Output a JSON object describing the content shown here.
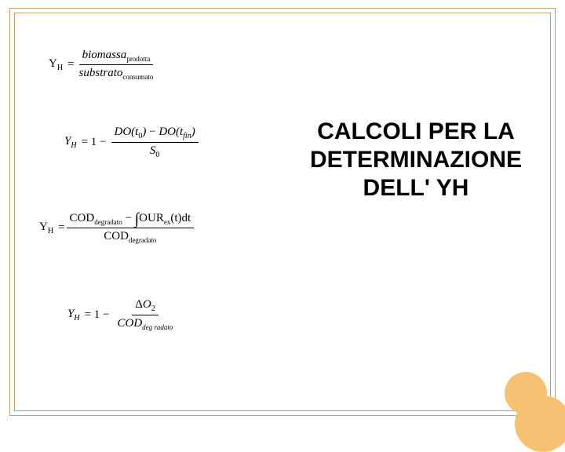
{
  "title": "CALCOLI PER LA DETERMINAZIONE DELL' YH",
  "colors": {
    "frame_border": "#c0a070",
    "circle_fill": "#f7c173",
    "text": "#000000",
    "background": "#ffffff"
  },
  "equations": {
    "eq1": {
      "lhs_symbol": "Y",
      "lhs_sub": "H",
      "op": "=",
      "num_main": "biomassa",
      "num_sub": "prodotta",
      "den_main": "substrato",
      "den_sub": "consumato"
    },
    "eq2": {
      "lhs_symbol": "Y",
      "lhs_sub": "H",
      "prefix": "= 1 −",
      "num_part1": "DO",
      "num_arg1": "t",
      "num_arg1_sub": "0",
      "num_minus": "−",
      "num_part2": "DO",
      "num_arg2": "t",
      "num_arg2_sub": "fin",
      "den_symbol": "S",
      "den_sub": "0"
    },
    "eq3": {
      "lhs_symbol": "Y",
      "lhs_sub": "H",
      "op": "=",
      "num_term1": "COD",
      "num_term1_sub": "degradato",
      "num_minus": "−",
      "integral": "∫",
      "num_term2": "OUR",
      "num_term2_sub": "ex",
      "num_arg": "(t)dt",
      "den_term": "COD",
      "den_sub": "degradato"
    },
    "eq4": {
      "lhs_symbol": "Y",
      "lhs_sub": "H",
      "prefix": "= 1 −",
      "num_delta": "Δ",
      "num_symbol": "O",
      "num_sub": "2",
      "den_term": "COD",
      "den_sub": "deg radato"
    }
  }
}
